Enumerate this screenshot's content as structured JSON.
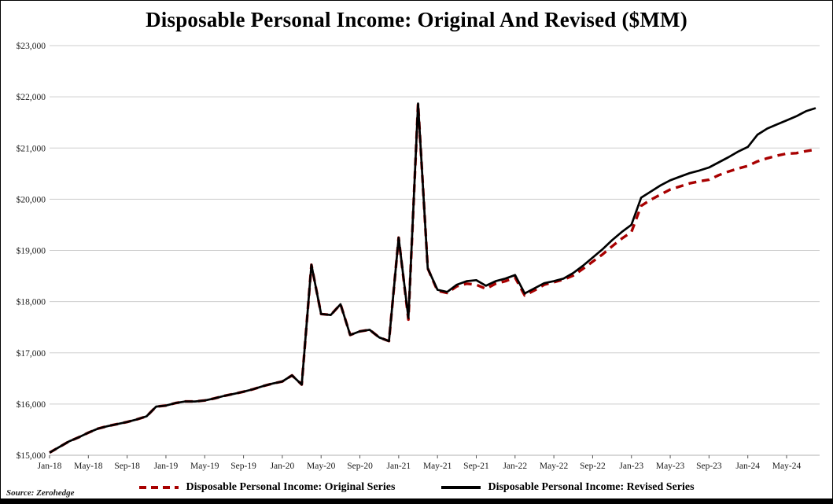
{
  "frame": {
    "background": "#ffffff",
    "border_color": "#000000",
    "grid_color": "#cdcdcd",
    "axis_color": "#b0b0b0"
  },
  "chart_data": {
    "type": "line",
    "title": "Disposable Personal Income: Original And Revised ($MM)",
    "source_note": "Source: Zerohedge",
    "grid": "horizontal",
    "legend_position": "bottom",
    "ylim": [
      15000,
      23000
    ],
    "ytick_step": 1000,
    "y_tick_labels": [
      "$15,000",
      "$16,000",
      "$17,000",
      "$18,000",
      "$19,000",
      "$20,000",
      "$21,000",
      "$22,000",
      "$23,000"
    ],
    "x_tick_every": 4,
    "x_tick_labels": [
      "Jan-18",
      "May-18",
      "Sep-18",
      "Jan-19",
      "May-19",
      "Sep-19",
      "Jan-20",
      "May-20",
      "Sep-20",
      "Jan-21",
      "May-21",
      "Sep-21",
      "Jan-22",
      "May-22",
      "Sep-22",
      "Jan-23",
      "May-23",
      "Sep-23",
      "Jan-24",
      "May-24"
    ],
    "categories": [
      "Jan-18",
      "Feb-18",
      "Mar-18",
      "Apr-18",
      "May-18",
      "Jun-18",
      "Jul-18",
      "Aug-18",
      "Sep-18",
      "Oct-18",
      "Nov-18",
      "Dec-18",
      "Jan-19",
      "Feb-19",
      "Mar-19",
      "Apr-19",
      "May-19",
      "Jun-19",
      "Jul-19",
      "Aug-19",
      "Sep-19",
      "Oct-19",
      "Nov-19",
      "Dec-19",
      "Jan-20",
      "Feb-20",
      "Mar-20",
      "Apr-20",
      "May-20",
      "Jun-20",
      "Jul-20",
      "Aug-20",
      "Sep-20",
      "Oct-20",
      "Nov-20",
      "Dec-20",
      "Jan-21",
      "Feb-21",
      "Mar-21",
      "Apr-21",
      "May-21",
      "Jun-21",
      "Jul-21",
      "Aug-21",
      "Sep-21",
      "Oct-21",
      "Nov-21",
      "Dec-21",
      "Jan-22",
      "Feb-22",
      "Mar-22",
      "Apr-22",
      "May-22",
      "Jun-22",
      "Jul-22",
      "Aug-22",
      "Sep-22",
      "Oct-22",
      "Nov-22",
      "Dec-22",
      "Jan-23",
      "Feb-23",
      "Mar-23",
      "Apr-23",
      "May-23",
      "Jun-23",
      "Jul-23",
      "Aug-23",
      "Sep-23",
      "Oct-23",
      "Nov-23",
      "Dec-23",
      "Jan-24",
      "Feb-24",
      "Mar-24",
      "Apr-24",
      "May-24",
      "Jun-24",
      "Jul-24",
      "Aug-24"
    ],
    "series": [
      {
        "name": "Disposable Personal Income: Original Series",
        "color": "#a80000",
        "style": "dashed",
        "values": [
          15050,
          15160,
          15270,
          15350,
          15440,
          15520,
          15570,
          15610,
          15650,
          15700,
          15760,
          15950,
          15970,
          16020,
          16050,
          16050,
          16070,
          16110,
          16160,
          16200,
          16240,
          16290,
          16350,
          16400,
          16440,
          16560,
          16380,
          18720,
          17760,
          17740,
          17950,
          17350,
          17420,
          17450,
          17300,
          17230,
          19250,
          17650,
          21870,
          18650,
          18210,
          18170,
          18300,
          18350,
          18330,
          18250,
          18350,
          18400,
          18470,
          18120,
          18220,
          18330,
          18380,
          18430,
          18510,
          18640,
          18780,
          18920,
          19080,
          19230,
          19360,
          19870,
          19990,
          20090,
          20190,
          20250,
          20310,
          20350,
          20380,
          20470,
          20540,
          20600,
          20650,
          20740,
          20800,
          20850,
          20890,
          20900,
          20940,
          20970
        ]
      },
      {
        "name": "Disposable Personal Income: Revised Series",
        "color": "#000000",
        "style": "solid",
        "values": [
          15050,
          15160,
          15270,
          15350,
          15440,
          15520,
          15570,
          15610,
          15650,
          15700,
          15760,
          15950,
          15970,
          16020,
          16050,
          16050,
          16070,
          16110,
          16160,
          16200,
          16240,
          16290,
          16350,
          16400,
          16440,
          16560,
          16380,
          18720,
          17760,
          17740,
          17950,
          17350,
          17420,
          17450,
          17300,
          17230,
          19250,
          17680,
          21870,
          18650,
          18230,
          18190,
          18330,
          18400,
          18420,
          18310,
          18400,
          18450,
          18520,
          18160,
          18260,
          18360,
          18400,
          18450,
          18560,
          18700,
          18860,
          19020,
          19200,
          19360,
          19500,
          20030,
          20150,
          20270,
          20370,
          20440,
          20510,
          20560,
          20620,
          20720,
          20820,
          20930,
          21020,
          21260,
          21380,
          21460,
          21540,
          21620,
          21720,
          21780
        ]
      }
    ]
  }
}
